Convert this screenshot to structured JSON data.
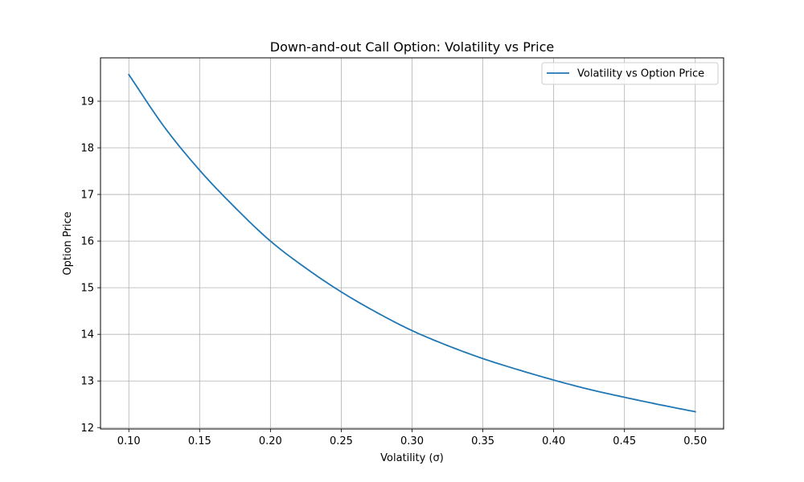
{
  "chart_data": {
    "type": "line",
    "title": "Down-and-out Call Option: Volatility vs Price",
    "xlabel": "Volatility (σ)",
    "ylabel": "Option Price",
    "xlim": [
      0.08,
      0.52
    ],
    "ylim": [
      11.97,
      19.93
    ],
    "xticks": [
      0.1,
      0.15,
      0.2,
      0.25,
      0.3,
      0.35,
      0.4,
      0.45,
      0.5
    ],
    "xtick_labels": [
      "0.10",
      "0.15",
      "0.20",
      "0.25",
      "0.30",
      "0.35",
      "0.40",
      "0.45",
      "0.50"
    ],
    "yticks": [
      12,
      13,
      14,
      15,
      16,
      17,
      18,
      19
    ],
    "ytick_labels": [
      "12",
      "13",
      "14",
      "15",
      "16",
      "17",
      "18",
      "19"
    ],
    "grid": true,
    "legend": {
      "position": "top-right",
      "entries": [
        "Volatility vs Option Price"
      ]
    },
    "series": [
      {
        "name": "Volatility vs Option Price",
        "color": "#1f77b4",
        "x": [
          0.1,
          0.125,
          0.15,
          0.175,
          0.2,
          0.225,
          0.25,
          0.275,
          0.3,
          0.325,
          0.35,
          0.375,
          0.4,
          0.425,
          0.45,
          0.475,
          0.5
        ],
        "y": [
          19.57,
          18.45,
          17.52,
          16.72,
          16.0,
          15.42,
          14.91,
          14.47,
          14.08,
          13.76,
          13.48,
          13.24,
          13.02,
          12.82,
          12.65,
          12.49,
          12.34
        ]
      }
    ]
  }
}
